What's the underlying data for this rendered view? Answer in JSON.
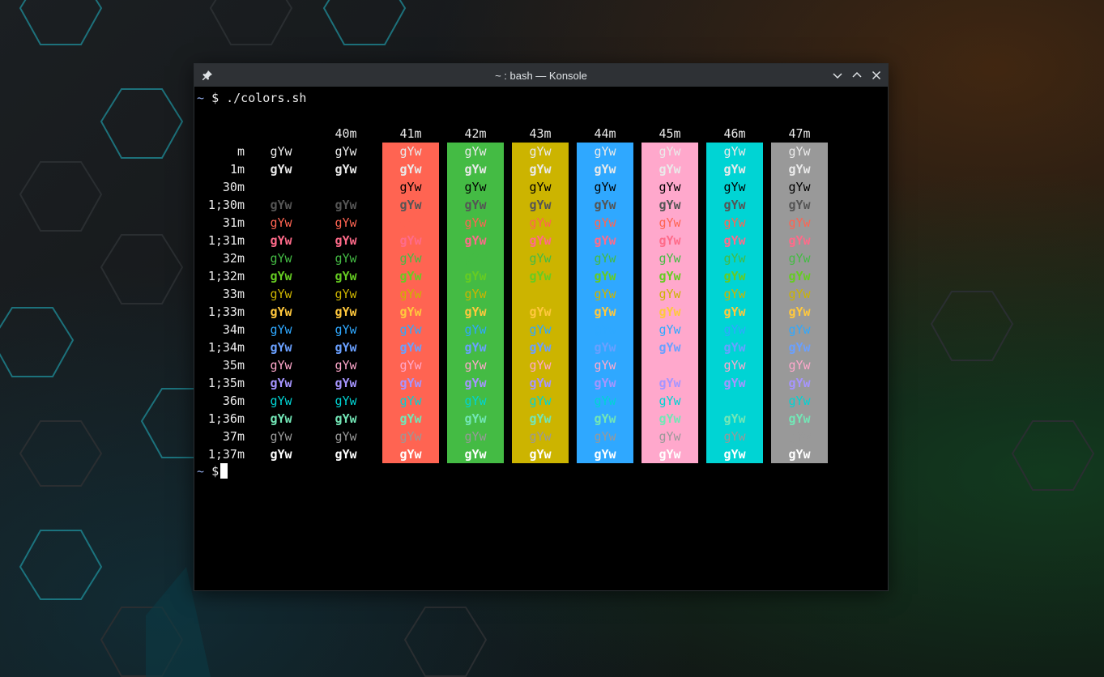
{
  "window": {
    "title": "~ : bash — Konsole",
    "buttons": [
      "minimize",
      "maximize",
      "close"
    ]
  },
  "terminal": {
    "prompt_tilde": "~",
    "prompt_dollar": "$",
    "command": "./colors.sh",
    "header": [
      "40m",
      "41m",
      "42m",
      "43m",
      "44m",
      "45m",
      "46m",
      "47m"
    ],
    "sample_text": "gYw",
    "row_labels": [
      "m",
      "1m",
      "30m",
      "1;30m",
      "31m",
      "1;31m",
      "32m",
      "1;32m",
      "33m",
      "1;33m",
      "34m",
      "1;34m",
      "35m",
      "1;35m",
      "36m",
      "1;36m",
      "37m",
      "1;37m"
    ],
    "backgrounds": {
      "41m": "#ff6452",
      "42m": "#44bb44",
      "43m": "#ccb400",
      "44m": "#2fa8ff",
      "45m": "#ffa8cc",
      "46m": "#00d4d4",
      "47m": "#999999"
    },
    "foregrounds": {
      "default": "#eaeaea",
      "30": "#000000",
      "1;30": "#555555",
      "31": "#ff6452",
      "1;31": "#ff6b8a",
      "32": "#44bb44",
      "1;32": "#66cc22",
      "33": "#ccb400",
      "1;33": "#ffc83d",
      "34": "#2fa8ff",
      "1;34": "#6aa0ff",
      "35": "#ffa8cc",
      "1;35": "#a695ff",
      "36": "#00d4d4",
      "1;36": "#73e6b6",
      "37": "#999999",
      "1;37": "#ffffff"
    }
  }
}
